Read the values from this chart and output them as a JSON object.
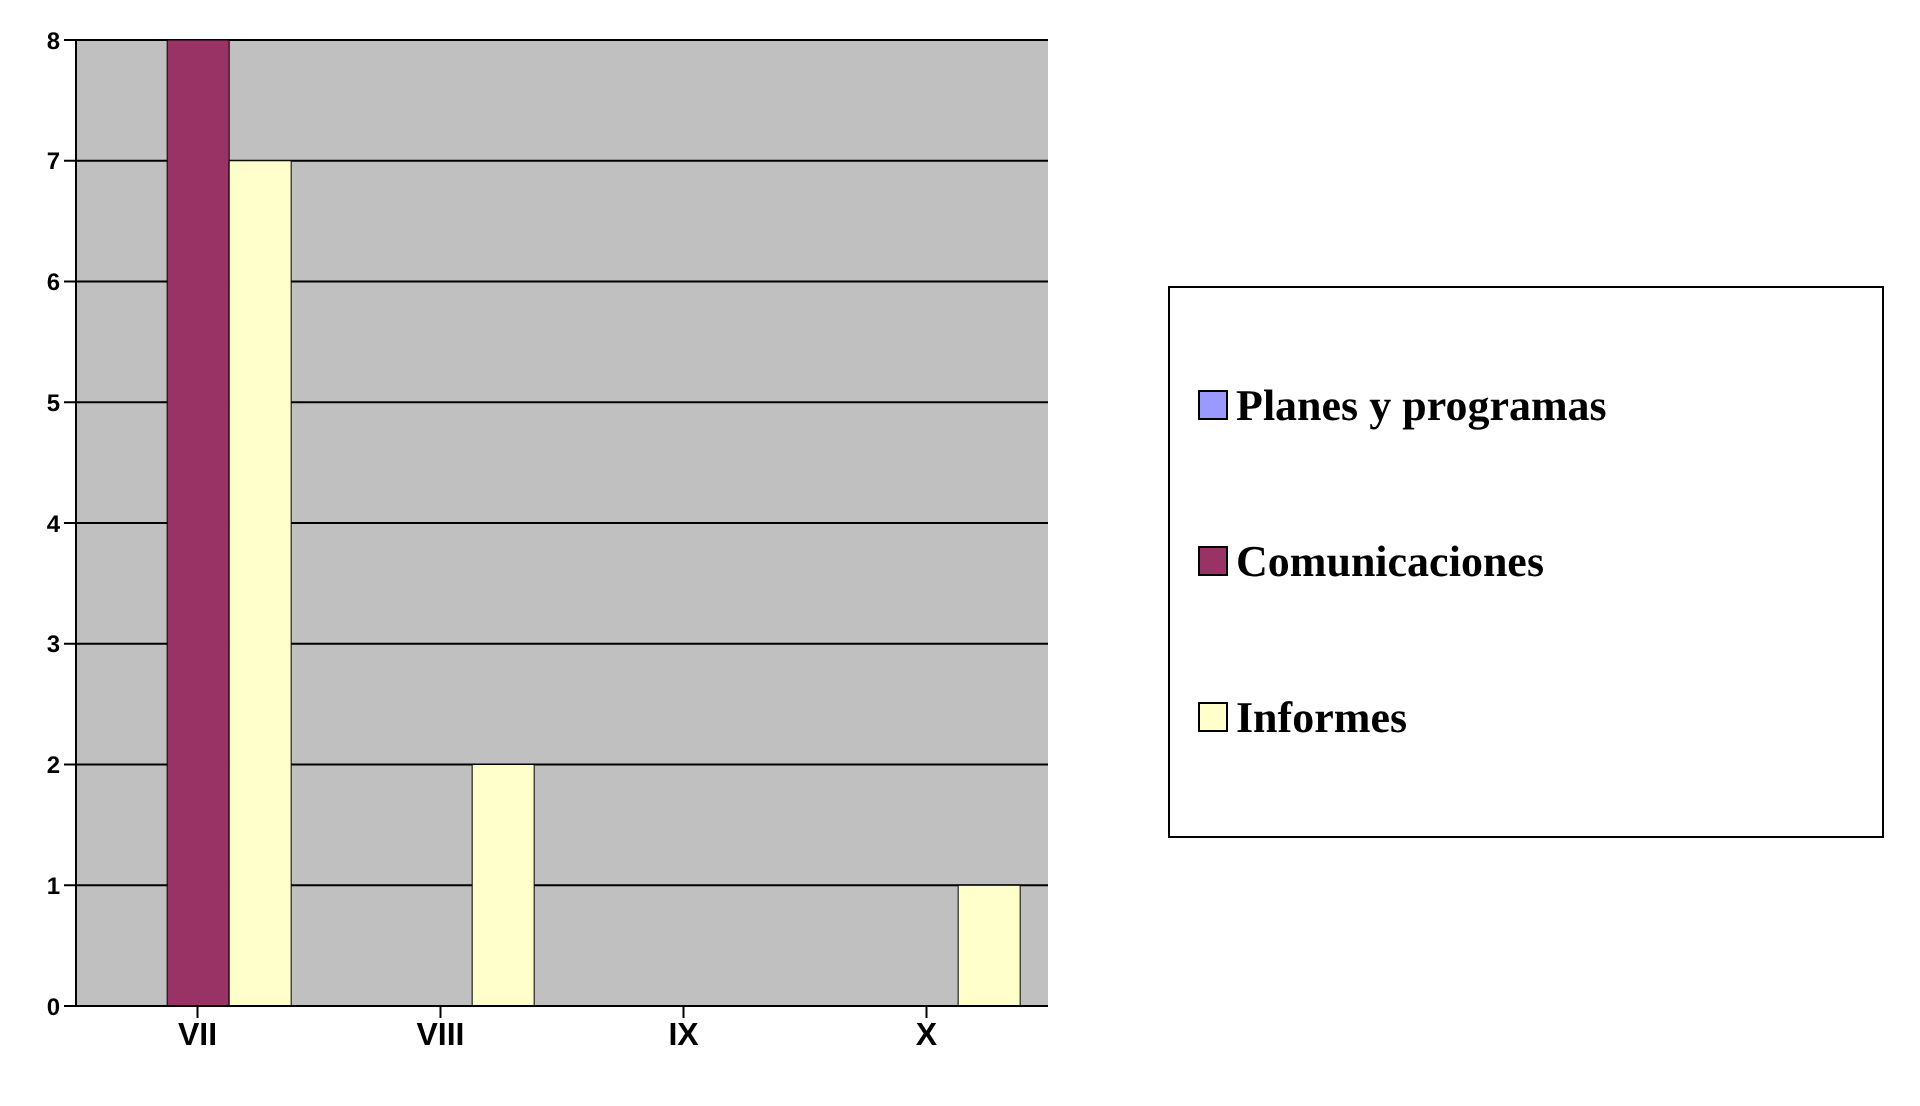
{
  "chart_data": {
    "type": "bar",
    "categories": [
      "VII",
      "VIII",
      "IX",
      "X"
    ],
    "series": [
      {
        "name": "Planes y programas",
        "color": "#9999ff",
        "values": [
          0,
          0,
          0,
          0
        ]
      },
      {
        "name": "Comunicaciones",
        "color": "#993366",
        "values": [
          8,
          0,
          0,
          0
        ]
      },
      {
        "name": "Informes",
        "color": "#ffffcc",
        "values": [
          7,
          2,
          0,
          1
        ]
      }
    ],
    "ylim": [
      0,
      8
    ],
    "yticks": [
      0,
      1,
      2,
      3,
      4,
      5,
      6,
      7,
      8
    ],
    "grid": "y",
    "legend": "right"
  }
}
